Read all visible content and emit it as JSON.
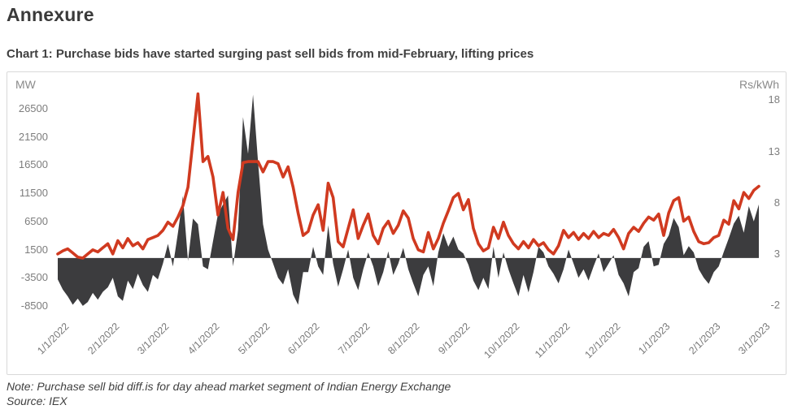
{
  "page": {
    "heading": "Annexure"
  },
  "chart": {
    "title": "Chart 1: Purchase bids have started surging past sell bids from mid-February, lifting prices",
    "left_axis_unit": "MW",
    "right_axis_unit": "Rs/kWh"
  },
  "note": {
    "line1": "Note: Purchase sell bid diff.is for day ahead market segment of Indian Energy Exchange",
    "line2": "Source: IEX"
  },
  "chart_data": {
    "type": "area+line",
    "title": "Chart 1: Purchase bids have started surging past sell bids from mid-February, lifting prices",
    "x_tick_labels": [
      "1/1/2022",
      "2/1/2022",
      "3/1/2022",
      "4/1/2022",
      "5/1/2022",
      "6/1/2022",
      "7/1/2022",
      "8/1/2022",
      "9/1/2022",
      "10/1/2022",
      "11/1/2022",
      "12/1/2022",
      "1/1/2023",
      "2/1/2023",
      "3/1/2023"
    ],
    "points_per_month": 10,
    "left_axis": {
      "unit": "MW",
      "tick_values": [
        26500,
        21500,
        16500,
        11500,
        6500,
        1500,
        -3500,
        -8500
      ]
    },
    "right_axis": {
      "unit": "Rs/kWh",
      "tick_values": [
        18,
        13,
        8,
        3,
        -2
      ]
    },
    "grid": false,
    "legend": false,
    "series": [
      {
        "name": "purchase_sell_bid_diff_MW",
        "type": "area",
        "axis": "left",
        "color": "#3c3c3e",
        "values": [
          -3800,
          -5600,
          -6800,
          -8300,
          -7200,
          -8500,
          -7800,
          -6200,
          -7400,
          -6000,
          -5200,
          -3500,
          -6800,
          -7600,
          -4000,
          -5500,
          -2800,
          -4800,
          -6000,
          -3000,
          -3800,
          -1000,
          2500,
          -1500,
          4500,
          11000,
          -500,
          7000,
          6000,
          -1500,
          -2000,
          3000,
          7800,
          9500,
          11100,
          -1500,
          5000,
          25000,
          18500,
          29000,
          17000,
          6000,
          1500,
          -1000,
          -3500,
          -4700,
          -2000,
          -6500,
          -8300,
          -2500,
          -2500,
          2000,
          -1500,
          -3000,
          5800,
          -1000,
          -5100,
          -2000,
          1500,
          -3500,
          -5700,
          -2000,
          1000,
          -1500,
          -5000,
          -2500,
          1200,
          -3000,
          -1000,
          1800,
          -2000,
          -4500,
          -6800,
          -3000,
          -1500,
          -5000,
          1000,
          4400,
          2000,
          3800,
          1500,
          800,
          -1200,
          -4000,
          -5700,
          -3500,
          -5500,
          2000,
          -3500,
          1000,
          -2000,
          -4500,
          -6800,
          -3000,
          -6100,
          -2500,
          2000,
          1000,
          -1500,
          -2800,
          -4500,
          -2000,
          1500,
          -1000,
          -3500,
          -2000,
          -4000,
          -1500,
          800,
          -2500,
          -1000,
          500,
          -3000,
          -4500,
          -6800,
          -2500,
          -1800,
          2000,
          3000,
          -1500,
          -1200,
          2500,
          4000,
          7100,
          5500,
          500,
          2100,
          1000,
          -2000,
          -3500,
          -4600,
          -2500,
          -1500,
          1100,
          3500,
          6100,
          7500,
          4500,
          9200,
          6500,
          9500
        ]
      },
      {
        "name": "price_Rs_kWh",
        "type": "line",
        "axis": "right",
        "color": "#d03a20",
        "values": [
          3.0,
          3.3,
          3.5,
          3.1,
          2.7,
          2.6,
          3.0,
          3.4,
          3.2,
          3.6,
          4.0,
          3.0,
          4.3,
          3.6,
          4.5,
          3.8,
          4.1,
          3.5,
          4.4,
          4.6,
          4.8,
          5.3,
          6.1,
          5.7,
          6.6,
          7.7,
          9.5,
          14.0,
          18.6,
          12.0,
          12.5,
          10.5,
          6.8,
          9.0,
          5.5,
          4.4,
          9.0,
          11.9,
          12.0,
          12.0,
          12.0,
          11.0,
          12.0,
          12.0,
          11.8,
          10.5,
          11.5,
          9.5,
          7.0,
          4.8,
          5.2,
          6.8,
          7.8,
          5.3,
          9.9,
          8.5,
          4.2,
          3.7,
          5.5,
          7.3,
          4.5,
          5.8,
          6.9,
          4.8,
          4.0,
          5.5,
          6.2,
          5.0,
          5.8,
          7.2,
          6.5,
          4.5,
          3.4,
          3.2,
          5.1,
          3.5,
          4.5,
          6.0,
          7.2,
          8.5,
          8.9,
          7.3,
          8.3,
          5.5,
          4.0,
          3.3,
          3.6,
          5.6,
          4.5,
          6.1,
          4.8,
          4.0,
          3.5,
          4.2,
          3.6,
          4.4,
          3.8,
          4.1,
          3.4,
          3.0,
          3.8,
          5.3,
          4.6,
          5.1,
          4.4,
          5.0,
          4.5,
          5.2,
          4.6,
          5.0,
          4.8,
          5.4,
          4.6,
          3.5,
          5.0,
          5.6,
          5.2,
          6.0,
          6.6,
          6.3,
          6.9,
          4.8,
          7.0,
          8.2,
          8.5,
          6.2,
          6.6,
          5.2,
          4.2,
          4.0,
          4.1,
          4.6,
          4.8,
          6.3,
          5.9,
          8.2,
          7.4,
          9.0,
          8.4,
          9.2,
          9.6
        ]
      }
    ]
  }
}
